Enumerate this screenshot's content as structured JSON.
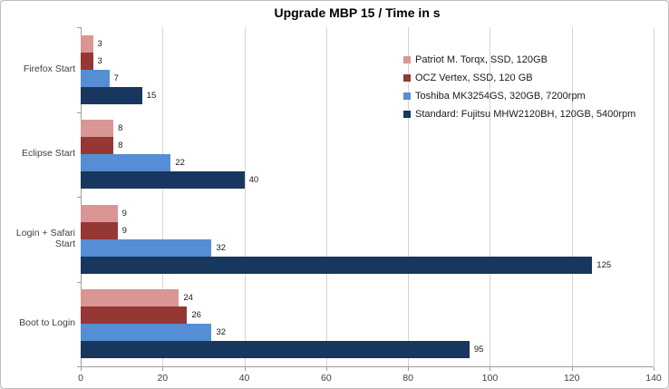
{
  "title": "Upgrade MBP 15 / Time in s",
  "chart_data": {
    "type": "bar",
    "orientation": "horizontal",
    "title": "Upgrade MBP 15 / Time in s",
    "xlabel": "",
    "ylabel": "",
    "xlim": [
      0,
      140
    ],
    "xticks": [
      0,
      20,
      40,
      60,
      80,
      100,
      120,
      140
    ],
    "grid": true,
    "data_labels": true,
    "legend_position": "inside-top-right",
    "categories": [
      "Firefox Start",
      "Eclipse Start",
      "Login + Safari Start",
      "Boot to Login"
    ],
    "series": [
      {
        "name": "Patriot M. Torqx, SSD, 120GB",
        "color": "#D99694",
        "values": [
          3,
          8,
          9,
          24
        ]
      },
      {
        "name": "OCZ Vertex, SSD, 120 GB",
        "color": "#953735",
        "values": [
          3,
          8,
          9,
          26
        ]
      },
      {
        "name": "Toshiba MK3254GS, 320GB, 7200rpm",
        "color": "#558ED5",
        "values": [
          7,
          22,
          32,
          32
        ]
      },
      {
        "name": "Standard: Fujitsu MHW2120BH, 120GB, 5400rpm",
        "color": "#17375E",
        "values": [
          15,
          40,
          125,
          95
        ]
      }
    ]
  },
  "colors": {
    "background": "#FFFFFF",
    "chart_border": "#BDBDBD",
    "gridline": "#D4D4D4",
    "axis_line": "#9E9E9E",
    "label_text": "#404040",
    "value_text": "#1A1A1A"
  }
}
